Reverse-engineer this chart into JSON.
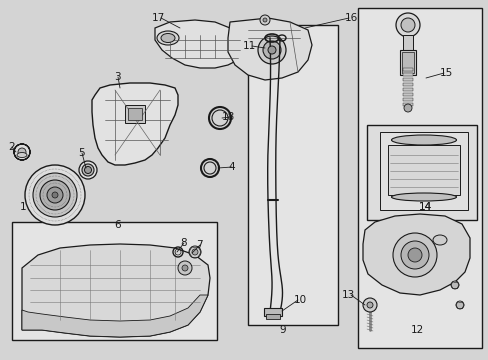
{
  "bg": "#d4d4d4",
  "white": "#ffffff",
  "black": "#1a1a1a",
  "gray1": "#e8e8e8",
  "gray2": "#c8c8c8",
  "gray3": "#a0a0a0",
  "fs": 7.5,
  "figsize": [
    4.89,
    3.6
  ],
  "dpi": 100,
  "labels": {
    "1": [
      20,
      197,
      27,
      200
    ],
    "2": [
      14,
      147,
      22,
      152
    ],
    "3": [
      117,
      79,
      122,
      90
    ],
    "4": [
      228,
      167,
      218,
      163
    ],
    "5": [
      88,
      153,
      94,
      158
    ],
    "6": [
      120,
      224,
      120,
      222
    ],
    "7": [
      194,
      242,
      188,
      248
    ],
    "8": [
      177,
      244,
      172,
      250
    ],
    "9": [
      283,
      326,
      283,
      326
    ],
    "10": [
      296,
      300,
      285,
      300
    ],
    "11": [
      265,
      47,
      272,
      52
    ],
    "12": [
      420,
      326,
      420,
      326
    ],
    "13": [
      364,
      296,
      371,
      301
    ],
    "14": [
      420,
      207,
      420,
      207
    ],
    "15": [
      443,
      73,
      433,
      73
    ],
    "16": [
      345,
      18,
      335,
      24
    ],
    "17": [
      175,
      22,
      183,
      28
    ],
    "18": [
      237,
      117,
      226,
      117
    ]
  }
}
